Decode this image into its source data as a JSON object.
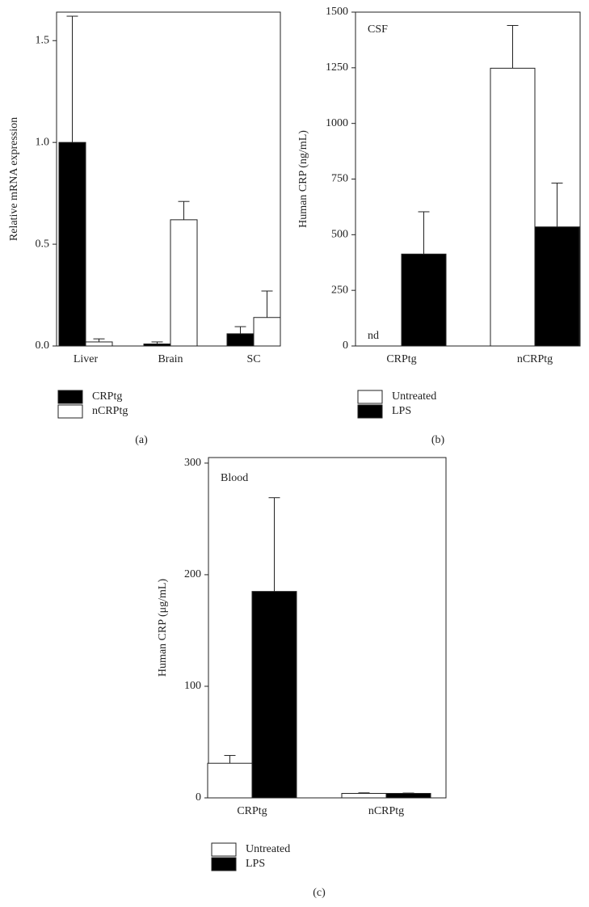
{
  "chart_data": [
    {
      "type": "bar",
      "ylabel": "Relative mRNA expression",
      "panel_label": "(a)",
      "categories": [
        "Liver",
        "Brain",
        "SC"
      ],
      "series": [
        {
          "name": "CRPtg",
          "color": "#000000",
          "values": [
            1.0,
            0.01,
            0.06
          ],
          "errors": [
            0.62,
            0.01,
            0.035
          ]
        },
        {
          "name": "nCRPtg",
          "color": "#ffffff",
          "values": [
            0.02,
            0.62,
            0.14
          ],
          "errors": [
            0.015,
            0.09,
            0.13
          ]
        }
      ],
      "ylim": [
        0,
        1.64
      ],
      "yticks": [
        {
          "value": 0,
          "label": "0.0"
        },
        0.5,
        {
          "value": 1,
          "label": "1.0"
        },
        1.5
      ],
      "annotations": []
    },
    {
      "type": "bar",
      "ylabel": "Human CRP (ng/mL)",
      "panel_label": "(b)",
      "categories": [
        "CRPtg",
        "nCRPtg"
      ],
      "series": [
        {
          "name": "Untreated",
          "color": "#ffffff",
          "values": [
            null,
            1248
          ],
          "errors": [
            null,
            192
          ]
        },
        {
          "name": "LPS",
          "color": "#000000",
          "values": [
            413,
            535
          ],
          "errors": [
            190,
            197
          ]
        }
      ],
      "ylim": [
        0,
        1500
      ],
      "yticks": [
        0,
        250,
        500,
        750,
        1000,
        1250,
        1500
      ],
      "annotations": [
        "CSF",
        "nd"
      ]
    },
    {
      "type": "bar",
      "ylabel": "Human CRP (μg/mL)",
      "panel_label": "(c)",
      "categories": [
        "CRPtg",
        "nCRPtg"
      ],
      "series": [
        {
          "name": "Untreated",
          "color": "#ffffff",
          "values": [
            31,
            4
          ],
          "errors": [
            7,
            0.5
          ]
        },
        {
          "name": "LPS",
          "color": "#000000",
          "values": [
            185,
            4
          ],
          "errors": [
            84,
            0.3
          ]
        }
      ],
      "ylim": [
        0,
        305
      ],
      "yticks": [
        0,
        100,
        200,
        300
      ],
      "annotations": [
        "Blood"
      ]
    }
  ]
}
